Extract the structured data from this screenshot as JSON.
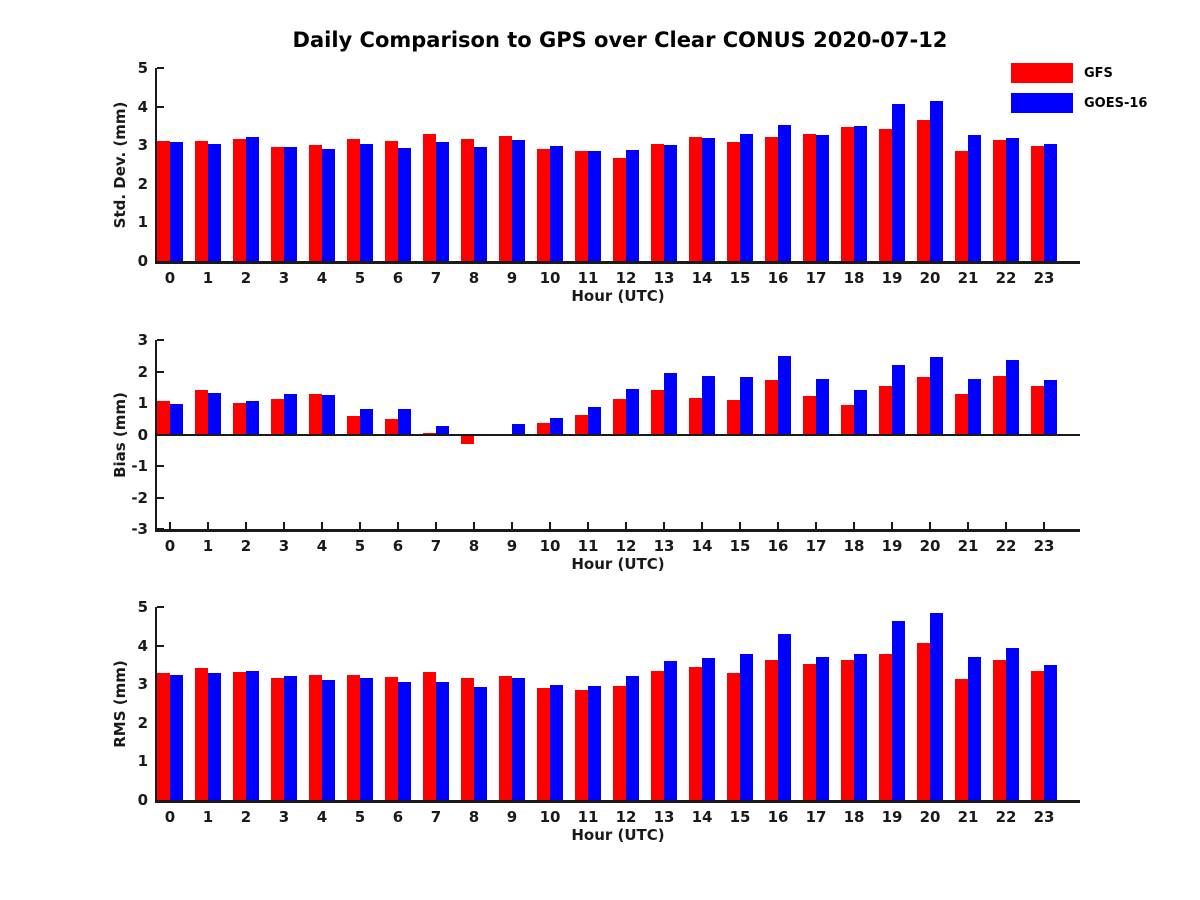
{
  "title": "Daily Comparison to GPS over Clear CONUS 2020-07-12",
  "legend": {
    "position": "top-right",
    "items": [
      {
        "label": "GFS",
        "color": "#ff0000"
      },
      {
        "label": "GOES-16",
        "color": "#0000ff"
      }
    ]
  },
  "colors": {
    "gfs": "#ff0000",
    "goes16": "#0000ff",
    "axis": "#1a1a1a",
    "background": "#ffffff"
  },
  "xlabel": "Hour (UTC)",
  "categories": [
    "0",
    "1",
    "2",
    "3",
    "4",
    "5",
    "6",
    "7",
    "8",
    "9",
    "10",
    "11",
    "12",
    "13",
    "14",
    "15",
    "16",
    "17",
    "18",
    "19",
    "20",
    "21",
    "22",
    "23"
  ],
  "chart_data": [
    {
      "type": "bar",
      "name": "std-dev",
      "title": "",
      "ylabel": "Std. Dev. (mm)",
      "xlabel": "Hour (UTC)",
      "ylim": [
        0,
        5
      ],
      "yticks": [
        0,
        1,
        2,
        3,
        4,
        5
      ],
      "grid": false,
      "categories": [
        "0",
        "1",
        "2",
        "3",
        "4",
        "5",
        "6",
        "7",
        "8",
        "9",
        "10",
        "11",
        "12",
        "13",
        "14",
        "15",
        "16",
        "17",
        "18",
        "19",
        "20",
        "21",
        "22",
        "23"
      ],
      "series": [
        {
          "name": "GFS",
          "color": "#ff0000",
          "values": [
            3.1,
            3.12,
            3.17,
            2.96,
            3.01,
            3.15,
            3.12,
            3.29,
            3.15,
            3.23,
            2.9,
            2.84,
            2.68,
            3.04,
            3.2,
            3.09,
            3.2,
            3.28,
            3.48,
            3.43,
            3.64,
            2.86,
            3.13,
            2.97
          ]
        },
        {
          "name": "GOES-16",
          "color": "#0000ff",
          "values": [
            3.07,
            3.03,
            3.21,
            2.96,
            2.89,
            3.04,
            2.93,
            3.07,
            2.95,
            3.14,
            2.97,
            2.86,
            2.88,
            3.01,
            3.18,
            3.3,
            3.53,
            3.26,
            3.51,
            4.07,
            4.15,
            3.26,
            3.18,
            3.04
          ]
        }
      ]
    },
    {
      "type": "bar",
      "name": "bias",
      "title": "",
      "ylabel": "Bias (mm)",
      "xlabel": "Hour (UTC)",
      "ylim": [
        -3,
        3
      ],
      "yticks": [
        3,
        2,
        1,
        0,
        -1,
        -2,
        -3
      ],
      "grid": false,
      "categories": [
        "0",
        "1",
        "2",
        "3",
        "4",
        "5",
        "6",
        "7",
        "8",
        "9",
        "10",
        "11",
        "12",
        "13",
        "14",
        "15",
        "16",
        "17",
        "18",
        "19",
        "20",
        "21",
        "22",
        "23"
      ],
      "series": [
        {
          "name": "GFS",
          "color": "#ff0000",
          "values": [
            1.05,
            1.4,
            1.01,
            1.12,
            1.27,
            0.6,
            0.5,
            0.05,
            -0.3,
            0.0,
            0.38,
            0.61,
            1.12,
            1.4,
            1.16,
            1.08,
            1.72,
            1.22,
            0.95,
            1.54,
            1.82,
            1.28,
            1.87,
            1.55
          ]
        },
        {
          "name": "GOES-16",
          "color": "#0000ff",
          "values": [
            0.97,
            1.33,
            1.07,
            1.27,
            1.24,
            0.82,
            0.81,
            0.28,
            -0.06,
            0.33,
            0.53,
            0.88,
            1.45,
            1.95,
            1.85,
            1.81,
            2.5,
            1.77,
            1.4,
            2.22,
            2.45,
            1.77,
            2.35,
            1.72
          ]
        }
      ]
    },
    {
      "type": "bar",
      "name": "rms",
      "title": "",
      "ylabel": "RMS (mm)",
      "xlabel": "Hour (UTC)",
      "ylim": [
        0,
        5
      ],
      "yticks": [
        0,
        1,
        2,
        3,
        4,
        5
      ],
      "grid": false,
      "categories": [
        "0",
        "1",
        "2",
        "3",
        "4",
        "5",
        "6",
        "7",
        "8",
        "9",
        "10",
        "11",
        "12",
        "13",
        "14",
        "15",
        "16",
        "17",
        "18",
        "19",
        "20",
        "21",
        "22",
        "23"
      ],
      "series": [
        {
          "name": "GFS",
          "color": "#ff0000",
          "values": [
            3.28,
            3.43,
            3.31,
            3.16,
            3.25,
            3.23,
            3.18,
            3.31,
            3.16,
            3.22,
            2.9,
            2.86,
            2.95,
            3.35,
            3.44,
            3.29,
            3.63,
            3.53,
            3.62,
            3.79,
            4.07,
            3.14,
            3.63,
            3.35
          ]
        },
        {
          "name": "GOES-16",
          "color": "#0000ff",
          "values": [
            3.23,
            3.3,
            3.35,
            3.21,
            3.12,
            3.16,
            3.05,
            3.06,
            2.93,
            3.15,
            2.99,
            2.96,
            3.22,
            3.6,
            3.69,
            3.77,
            4.31,
            3.71,
            3.79,
            4.65,
            4.85,
            3.71,
            3.94,
            3.5
          ]
        }
      ]
    }
  ]
}
